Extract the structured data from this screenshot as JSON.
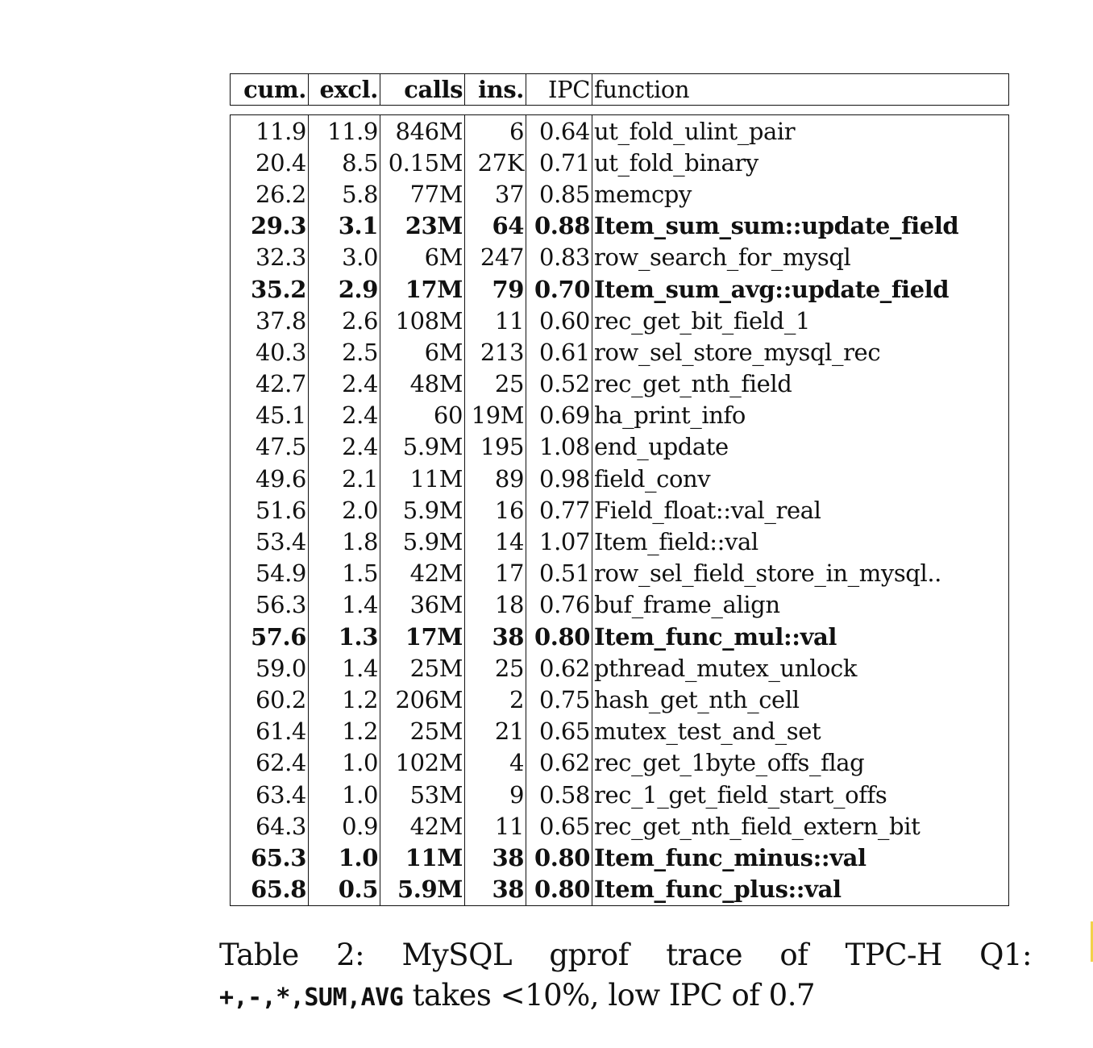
{
  "table": {
    "headers": {
      "cum": "cum.",
      "excl": "excl.",
      "calls": "calls",
      "ins": "ins.",
      "ipc": "IPC",
      "function": "function"
    },
    "rows": [
      {
        "cum": "11.9",
        "excl": "11.9",
        "calls": "846M",
        "ins": "6",
        "ipc": "0.64",
        "function": "ut_fold_ulint_pair",
        "bold": false
      },
      {
        "cum": "20.4",
        "excl": "8.5",
        "calls": "0.15M",
        "ins": "27K",
        "ipc": "0.71",
        "function": "ut_fold_binary",
        "bold": false
      },
      {
        "cum": "26.2",
        "excl": "5.8",
        "calls": "77M",
        "ins": "37",
        "ipc": "0.85",
        "function": "memcpy",
        "bold": false
      },
      {
        "cum": "29.3",
        "excl": "3.1",
        "calls": "23M",
        "ins": "64",
        "ipc": "0.88",
        "function": "Item_sum_sum::update_field",
        "bold": true
      },
      {
        "cum": "32.3",
        "excl": "3.0",
        "calls": "6M",
        "ins": "247",
        "ipc": "0.83",
        "function": "row_search_for_mysql",
        "bold": false
      },
      {
        "cum": "35.2",
        "excl": "2.9",
        "calls": "17M",
        "ins": "79",
        "ipc": "0.70",
        "function": "Item_sum_avg::update_field",
        "bold": true
      },
      {
        "cum": "37.8",
        "excl": "2.6",
        "calls": "108M",
        "ins": "11",
        "ipc": "0.60",
        "function": "rec_get_bit_field_1",
        "bold": false
      },
      {
        "cum": "40.3",
        "excl": "2.5",
        "calls": "6M",
        "ins": "213",
        "ipc": "0.61",
        "function": "row_sel_store_mysql_rec",
        "bold": false
      },
      {
        "cum": "42.7",
        "excl": "2.4",
        "calls": "48M",
        "ins": "25",
        "ipc": "0.52",
        "function": "rec_get_nth_field",
        "bold": false
      },
      {
        "cum": "45.1",
        "excl": "2.4",
        "calls": "60",
        "ins": "19M",
        "ipc": "0.69",
        "function": "ha_print_info",
        "bold": false
      },
      {
        "cum": "47.5",
        "excl": "2.4",
        "calls": "5.9M",
        "ins": "195",
        "ipc": "1.08",
        "function": "end_update",
        "bold": false
      },
      {
        "cum": "49.6",
        "excl": "2.1",
        "calls": "11M",
        "ins": "89",
        "ipc": "0.98",
        "function": "field_conv",
        "bold": false
      },
      {
        "cum": "51.6",
        "excl": "2.0",
        "calls": "5.9M",
        "ins": "16",
        "ipc": "0.77",
        "function": "Field_float::val_real",
        "bold": false
      },
      {
        "cum": "53.4",
        "excl": "1.8",
        "calls": "5.9M",
        "ins": "14",
        "ipc": "1.07",
        "function": "Item_field::val",
        "bold": false
      },
      {
        "cum": "54.9",
        "excl": "1.5",
        "calls": "42M",
        "ins": "17",
        "ipc": "0.51",
        "function": "row_sel_field_store_in_mysql..",
        "bold": false
      },
      {
        "cum": "56.3",
        "excl": "1.4",
        "calls": "36M",
        "ins": "18",
        "ipc": "0.76",
        "function": "buf_frame_align",
        "bold": false
      },
      {
        "cum": "57.6",
        "excl": "1.3",
        "calls": "17M",
        "ins": "38",
        "ipc": "0.80",
        "function": "Item_func_mul::val",
        "bold": true
      },
      {
        "cum": "59.0",
        "excl": "1.4",
        "calls": "25M",
        "ins": "25",
        "ipc": "0.62",
        "function": "pthread_mutex_unlock",
        "bold": false
      },
      {
        "cum": "60.2",
        "excl": "1.2",
        "calls": "206M",
        "ins": "2",
        "ipc": "0.75",
        "function": "hash_get_nth_cell",
        "bold": false
      },
      {
        "cum": "61.4",
        "excl": "1.2",
        "calls": "25M",
        "ins": "21",
        "ipc": "0.65",
        "function": "mutex_test_and_set",
        "bold": false
      },
      {
        "cum": "62.4",
        "excl": "1.0",
        "calls": "102M",
        "ins": "4",
        "ipc": "0.62",
        "function": "rec_get_1byte_offs_flag",
        "bold": false
      },
      {
        "cum": "63.4",
        "excl": "1.0",
        "calls": "53M",
        "ins": "9",
        "ipc": "0.58",
        "function": "rec_1_get_field_start_offs",
        "bold": false
      },
      {
        "cum": "64.3",
        "excl": "0.9",
        "calls": "42M",
        "ins": "11",
        "ipc": "0.65",
        "function": "rec_get_nth_field_extern_bit",
        "bold": false
      },
      {
        "cum": "65.3",
        "excl": "1.0",
        "calls": "11M",
        "ins": "38",
        "ipc": "0.80",
        "function": "Item_func_minus::val",
        "bold": true
      },
      {
        "cum": "65.8",
        "excl": "0.5",
        "calls": "5.9M",
        "ins": "38",
        "ipc": "0.80",
        "function": "Item_func_plus::val",
        "bold": true
      }
    ]
  },
  "caption": {
    "w1": "Table",
    "w2": "2:",
    "w3": "MySQL",
    "w4": "gprof",
    "w5": "trace",
    "w6": "of",
    "w7": "TPC-H",
    "w8": "Q1:",
    "code": "+,-,*,SUM,AVG",
    "rest": " takes <10%, low IPC of 0.7"
  },
  "colors": {
    "ink": "#111111",
    "edge_mark": "#f2d24a"
  }
}
